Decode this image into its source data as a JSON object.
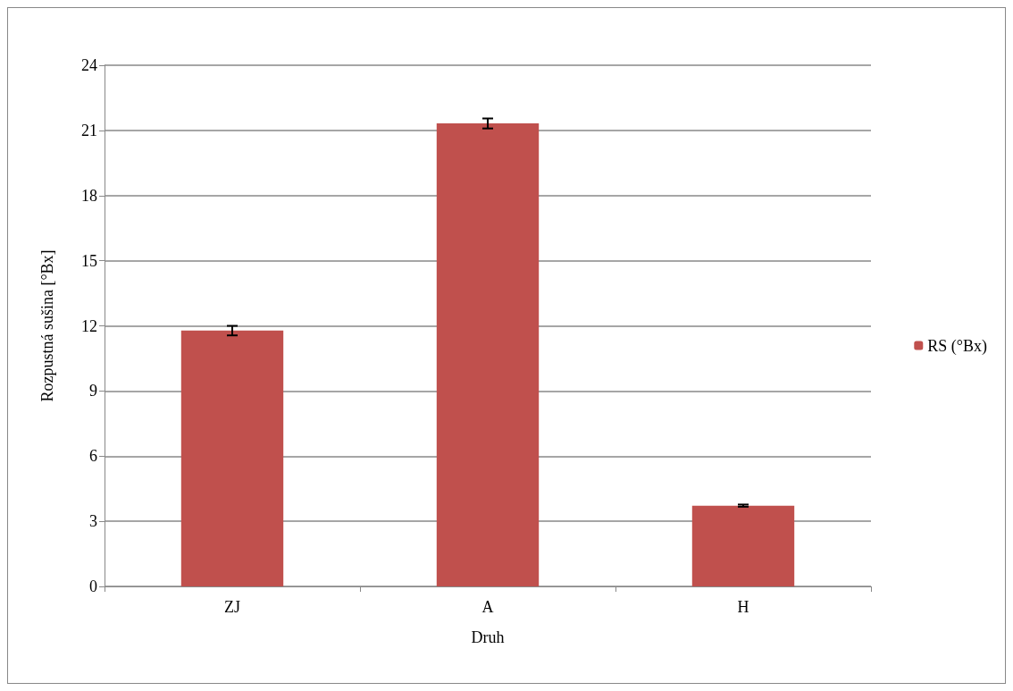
{
  "chart_data": {
    "type": "bar",
    "xlabel": "Druh",
    "ylabel": "Rozpustná sušina [°Bx]",
    "categories": [
      "ZJ",
      "A",
      "H"
    ],
    "series": [
      {
        "name": "RS (°Bx)",
        "color": "#c0504d",
        "values": [
          11.78,
          21.32,
          3.72
        ],
        "errors": [
          0.22,
          0.23,
          0.05
        ]
      }
    ],
    "ylim": [
      0,
      24
    ],
    "yticks": [
      0,
      3,
      6,
      9,
      12,
      15,
      18,
      21,
      24
    ],
    "grid": "y",
    "legend": "right"
  }
}
